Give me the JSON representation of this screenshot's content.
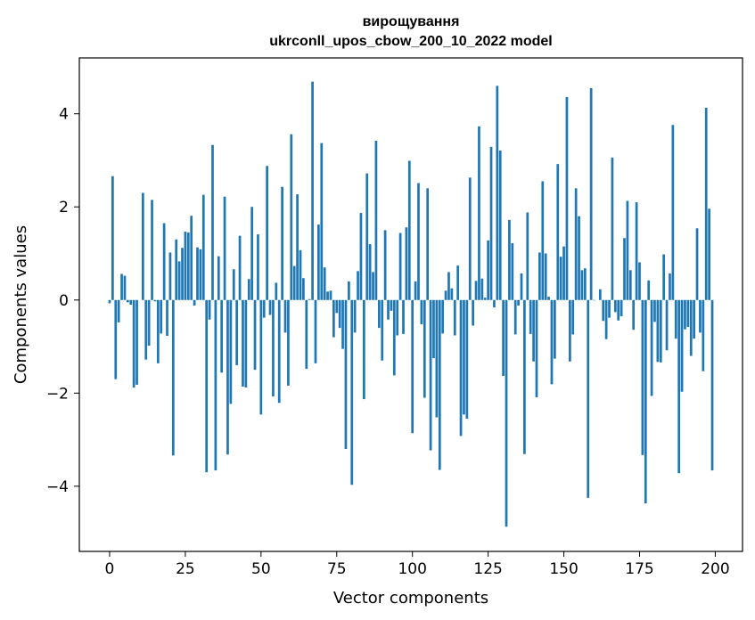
{
  "chart_data": {
    "type": "bar",
    "title": "вирощування",
    "subtitle": "ukrconll_upos_cbow_200_10_2022 model",
    "xlabel": "Vector components",
    "ylabel": "Components values",
    "xlim": [
      -10,
      209
    ],
    "ylim": [
      -5.4,
      5.2
    ],
    "xticks": [
      0,
      25,
      50,
      75,
      100,
      125,
      150,
      175,
      200
    ],
    "xtick_labels": [
      "0",
      "25",
      "50",
      "75",
      "100",
      "125",
      "150",
      "175",
      "200"
    ],
    "yticks": [
      -4,
      -2,
      0,
      2,
      4
    ],
    "ytick_labels": [
      "−4",
      "−2",
      "0",
      "2",
      "4"
    ],
    "grid": false,
    "bar_color": "#1f77b4",
    "x": [
      0,
      1,
      2,
      3,
      4,
      5,
      6,
      7,
      8,
      9,
      10,
      11,
      12,
      13,
      14,
      15,
      16,
      17,
      18,
      19,
      20,
      21,
      22,
      23,
      24,
      25,
      26,
      27,
      28,
      29,
      30,
      31,
      32,
      33,
      34,
      35,
      36,
      37,
      38,
      39,
      40,
      41,
      42,
      43,
      44,
      45,
      46,
      47,
      48,
      49,
      50,
      51,
      52,
      53,
      54,
      55,
      56,
      57,
      58,
      59,
      60,
      61,
      62,
      63,
      64,
      65,
      66,
      67,
      68,
      69,
      70,
      71,
      72,
      73,
      74,
      75,
      76,
      77,
      78,
      79,
      80,
      81,
      82,
      83,
      84,
      85,
      86,
      87,
      88,
      89,
      90,
      91,
      92,
      93,
      94,
      95,
      96,
      97,
      98,
      99,
      100,
      101,
      102,
      103,
      104,
      105,
      106,
      107,
      108,
      109,
      110,
      111,
      112,
      113,
      114,
      115,
      116,
      117,
      118,
      119,
      120,
      121,
      122,
      123,
      124,
      125,
      126,
      127,
      128,
      129,
      130,
      131,
      132,
      133,
      134,
      135,
      136,
      137,
      138,
      139,
      140,
      141,
      142,
      143,
      144,
      145,
      146,
      147,
      148,
      149,
      150,
      151,
      152,
      153,
      154,
      155,
      156,
      157,
      158,
      159,
      160,
      161,
      162,
      163,
      164,
      165,
      166,
      167,
      168,
      169,
      170,
      171,
      172,
      173,
      174,
      175,
      176,
      177,
      178,
      179,
      180,
      181,
      182,
      183,
      184,
      185,
      186,
      187,
      188,
      189,
      190,
      191,
      192,
      193,
      194,
      195,
      196,
      197,
      198,
      199
    ],
    "values": [
      -0.07,
      2.66,
      -1.7,
      -0.48,
      0.56,
      0.52,
      -0.05,
      -0.1,
      -1.88,
      -1.82,
      0.0,
      2.3,
      -1.28,
      -0.98,
      2.15,
      -0.03,
      -1.36,
      -0.72,
      1.65,
      -0.77,
      1.02,
      -3.34,
      1.3,
      0.83,
      1.12,
      1.47,
      1.45,
      1.81,
      -0.12,
      1.13,
      1.09,
      2.26,
      -3.7,
      -0.42,
      3.33,
      -3.66,
      0.94,
      -1.56,
      2.22,
      -3.32,
      -2.23,
      0.66,
      -1.4,
      1.38,
      -1.86,
      -1.88,
      0.45,
      2.0,
      -1.5,
      1.41,
      -2.46,
      -0.38,
      2.88,
      -0.32,
      -2.07,
      0.37,
      -2.21,
      2.43,
      -0.7,
      -1.84,
      3.56,
      0.73,
      2.27,
      1.07,
      0.47,
      -1.48,
      0.02,
      4.69,
      -1.36,
      1.62,
      3.37,
      0.7,
      0.18,
      0.2,
      -0.8,
      -0.28,
      -0.6,
      -1.05,
      -3.2,
      0.4,
      -3.97,
      -0.7,
      0.62,
      1.87,
      -2.13,
      2.72,
      1.2,
      0.6,
      3.42,
      -0.6,
      -1.3,
      1.5,
      -0.42,
      -0.23,
      -1.62,
      -0.76,
      1.44,
      -0.73,
      1.56,
      2.99,
      -2.86,
      0.4,
      2.51,
      -0.52,
      -2.1,
      2.4,
      -3.23,
      -1.25,
      -2.52,
      -3.65,
      -0.72,
      0.2,
      0.6,
      0.25,
      -0.76,
      0.74,
      -2.92,
      -2.46,
      -2.55,
      2.63,
      -0.55,
      0.41,
      3.73,
      0.46,
      0.05,
      1.28,
      3.29,
      -0.16,
      4.6,
      3.21,
      -1.63,
      -4.87,
      1.72,
      1.22,
      -0.74,
      -0.12,
      0.57,
      -3.31,
      1.88,
      -0.73,
      -1.32,
      -2.09,
      1.02,
      2.55,
      1.0,
      0.07,
      -1.81,
      -1.26,
      2.92,
      0.93,
      1.15,
      4.36,
      -1.32,
      -0.74,
      2.4,
      1.8,
      0.64,
      0.68,
      -4.25,
      4.55,
      -0.01,
      0.0,
      0.23,
      -0.45,
      -0.84,
      -0.38,
      3.06,
      -0.26,
      -0.44,
      -0.35,
      1.33,
      2.13,
      0.64,
      -0.64,
      2.1,
      0.81,
      -3.33,
      -4.37,
      0.42,
      -2.06,
      -0.47,
      -1.33,
      -1.34,
      0.98,
      -1.08,
      0.57,
      3.76,
      -0.83,
      -3.72,
      -1.97,
      -0.63,
      -0.58,
      -1.2,
      -0.83,
      1.54,
      -0.7,
      -1.53,
      4.13,
      1.96,
      -3.66
    ]
  }
}
